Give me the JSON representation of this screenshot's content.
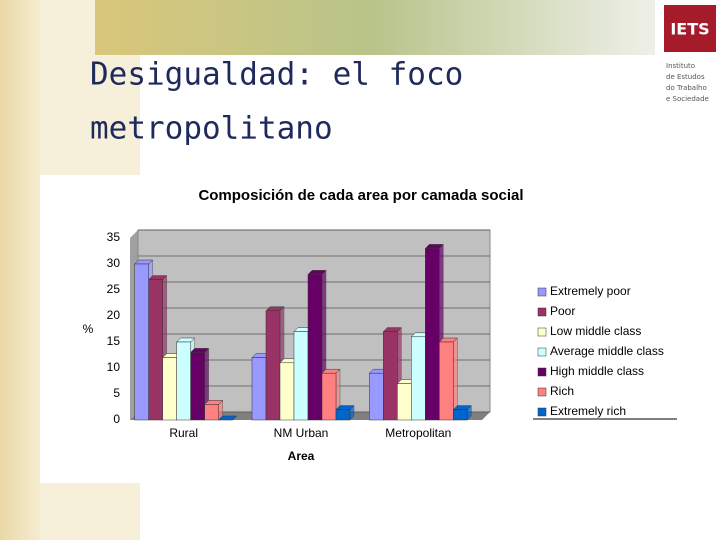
{
  "slide": {
    "title_lines": [
      "Desigualdad: el foco",
      "metropolitano"
    ],
    "logo": {
      "name": "IETS",
      "lines": [
        "Instituto",
        "de Estudos",
        "do Trabalho",
        "e Sociedade"
      ]
    }
  },
  "chart_data": {
    "type": "bar",
    "title": "Composición de cada area por camada social",
    "x_label": "Area",
    "y_label": "%",
    "categories": [
      "Rural",
      "NM Urban",
      "Metropolitan"
    ],
    "series": [
      {
        "name": "Extremely poor",
        "color": "#9999ff",
        "values": [
          30,
          12,
          9
        ]
      },
      {
        "name": "Poor",
        "color": "#993366",
        "values": [
          27,
          21,
          17
        ]
      },
      {
        "name": "Low middle class",
        "color": "#ffffcc",
        "values": [
          12,
          11,
          7
        ]
      },
      {
        "name": "Average middle class",
        "color": "#ccffff",
        "values": [
          15,
          17,
          16
        ]
      },
      {
        "name": "High middle class",
        "color": "#660066",
        "values": [
          13,
          28,
          33
        ]
      },
      {
        "name": "Rich",
        "color": "#ff8080",
        "values": [
          3,
          9,
          15
        ]
      },
      {
        "name": "Extremely rich",
        "color": "#0066cc",
        "values": [
          0,
          2,
          2
        ]
      }
    ],
    "ylim": [
      0,
      35
    ],
    "yticks": [
      0,
      5,
      10,
      15,
      20,
      25,
      30,
      35
    ],
    "grid": true,
    "legend": "right"
  }
}
